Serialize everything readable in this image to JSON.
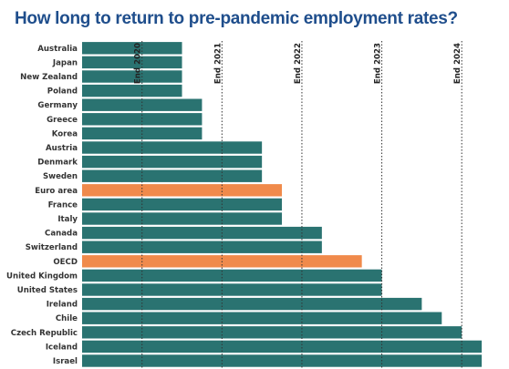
{
  "chart_data": {
    "type": "bar",
    "orientation": "horizontal",
    "title": "How long to return to pre-pandemic employment rates?",
    "categories": [
      "Australia",
      "Japan",
      "New Zealand",
      "Poland",
      "Germany",
      "Greece",
      "Korea",
      "Austria",
      "Denmark",
      "Sweden",
      "Euro area",
      "France",
      "Italy",
      "Canada",
      "Switzerland",
      "OECD",
      "United Kingdom",
      "United States",
      "Ireland",
      "Chile",
      "Czech Republic",
      "Iceland",
      "Israel"
    ],
    "values": [
      2020.5,
      2020.5,
      2020.5,
      2020.5,
      2020.75,
      2020.75,
      2020.75,
      2021.5,
      2021.5,
      2021.5,
      2021.75,
      2021.75,
      2021.75,
      2022.25,
      2022.25,
      2022.75,
      2023.0,
      2023.0,
      2023.5,
      2023.75,
      2024.0,
      2024.25,
      2024.25
    ],
    "xlim": [
      2019.25,
      2024.5
    ],
    "time_markers": [
      {
        "label": "End 2020",
        "value": 2020.0
      },
      {
        "label": "End 2021",
        "value": 2021.0
      },
      {
        "label": "End 2022",
        "value": 2022.0
      },
      {
        "label": "End 2023",
        "value": 2023.0
      },
      {
        "label": "End 2024",
        "value": 2024.0
      }
    ],
    "highlighted": [
      "Euro area",
      "OECD"
    ],
    "colors": {
      "bar": "#2a7371",
      "highlight": "#f08a4b",
      "title": "#1f4e8c"
    }
  }
}
